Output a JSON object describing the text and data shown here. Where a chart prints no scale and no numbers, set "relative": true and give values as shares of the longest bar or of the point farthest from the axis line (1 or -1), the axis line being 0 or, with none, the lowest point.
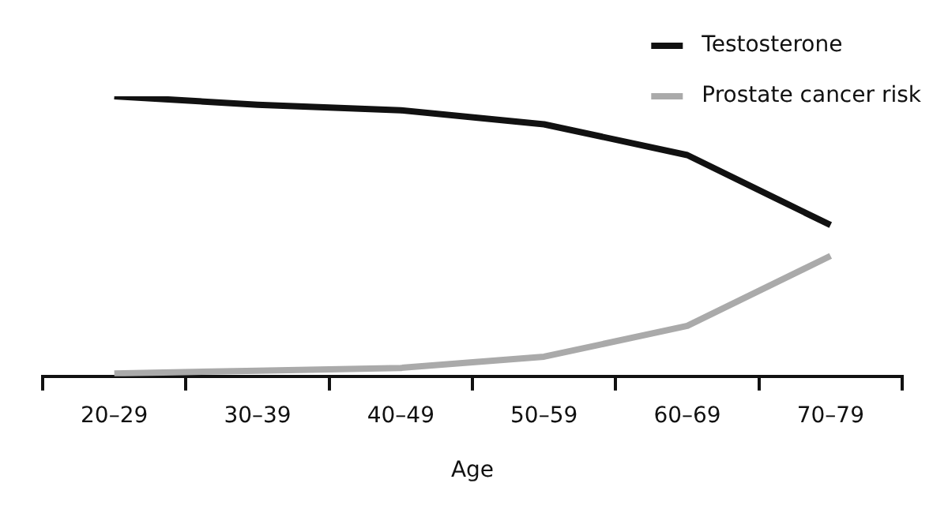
{
  "chart_data": {
    "type": "line",
    "xlabel": "Age",
    "categories": [
      "20–29",
      "30–39",
      "40–49",
      "50–59",
      "60–69",
      "70–79"
    ],
    "relative": true,
    "legend": "top right",
    "series": [
      {
        "name": "Testosterone",
        "color": "#111111",
        "values": [
          1,
          0.97,
          0.95,
          0.9,
          0.79,
          0.54
        ]
      },
      {
        "name": "Prostate cancer risk",
        "color": "#aaaaaa",
        "values": [
          0.01,
          0.02,
          0.03,
          0.07,
          0.18,
          0.43
        ]
      }
    ]
  }
}
